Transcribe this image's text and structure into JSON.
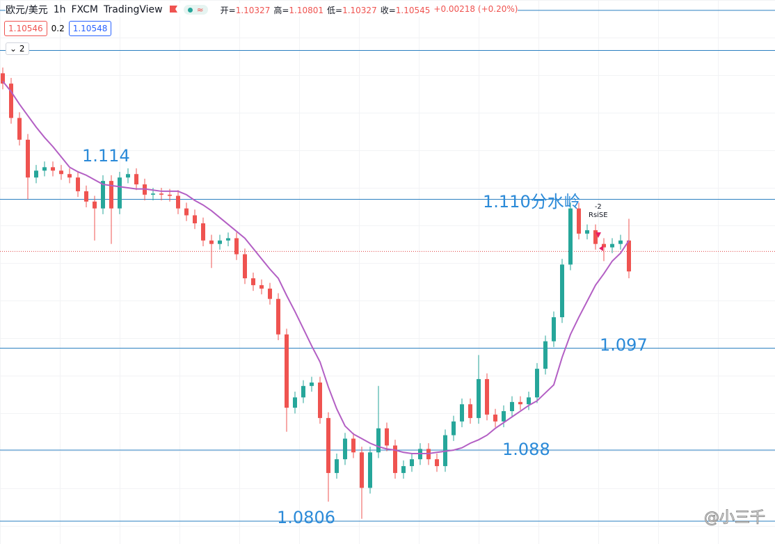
{
  "header": {
    "symbol": "欧元/美元",
    "interval": "1h",
    "broker": "FXCM",
    "platform": "TradingView",
    "badge": "≈",
    "ohlc": [
      {
        "label": "开=",
        "value": "1.10327"
      },
      {
        "label": "高=",
        "value": "1.10801"
      },
      {
        "label": "低=",
        "value": "1.10327"
      },
      {
        "label": "收=",
        "value": "1.10545"
      }
    ],
    "change": "+0.00218 (+0.20%)",
    "bid": "1.10546",
    "spread": "0.2",
    "ask": "1.10548",
    "indicators": "2"
  },
  "chart_data": {
    "type": "candlestick",
    "open": [
      1.121,
      1.1201,
      1.1171,
      1.1152,
      1.1119,
      1.1125,
      1.1128,
      1.1125,
      1.1122,
      1.1119,
      1.1107,
      1.1098,
      1.1092,
      1.1116,
      1.1092,
      1.1119,
      1.1122,
      1.1113,
      1.1104,
      1.1105,
      1.1104,
      1.1103,
      1.1092,
      1.1086,
      1.1079,
      1.1064,
      1.1061,
      1.1064,
      1.1066,
      1.1052,
      1.1031,
      1.1025,
      1.1022,
      1.1013,
      1.0982,
      1.0918,
      1.0927,
      1.0937,
      1.094,
      1.0909,
      1.0861,
      1.0873,
      1.0891,
      1.0879,
      1.0848,
      1.0879,
      1.09,
      1.0885,
      1.0861,
      1.0867,
      1.0873,
      1.0882,
      1.0873,
      1.0867,
      1.0894,
      1.0906,
      1.0921,
      1.0909,
      1.0943,
      1.0912,
      1.0906,
      1.0915,
      1.0923,
      1.0921,
      1.0927,
      1.0952,
      1.0976,
      1.0997,
      1.1043,
      1.1092,
      1.107,
      1.1073,
      1.1061,
      1.1058,
      1.1061,
      1.1064
    ],
    "high": [
      1.1215,
      1.1206,
      1.1176,
      1.1157,
      1.113,
      1.1133,
      1.1133,
      1.113,
      1.1127,
      1.1124,
      1.1112,
      1.1103,
      1.1121,
      1.1121,
      1.1124,
      1.1127,
      1.1127,
      1.1118,
      1.111,
      1.111,
      1.1109,
      1.1108,
      1.1097,
      1.1091,
      1.1084,
      1.1069,
      1.1069,
      1.1071,
      1.1071,
      1.1057,
      1.1036,
      1.103,
      1.1027,
      1.1018,
      1.0987,
      1.0932,
      1.0942,
      1.0945,
      1.0945,
      1.0914,
      1.0878,
      1.0896,
      1.0896,
      1.0884,
      1.0884,
      1.0937,
      1.0905,
      1.089,
      1.0872,
      1.0878,
      1.0887,
      1.0887,
      1.0878,
      1.0899,
      1.0911,
      1.0926,
      1.0926,
      1.0964,
      1.0948,
      1.0917,
      1.092,
      1.0928,
      1.0928,
      1.0932,
      1.0957,
      1.0981,
      1.1002,
      1.1048,
      1.1097,
      1.1097,
      1.1078,
      1.1078,
      1.1066,
      1.1066,
      1.1069,
      1.1083
    ],
    "low": [
      1.1196,
      1.1166,
      1.1147,
      1.11,
      1.1114,
      1.112,
      1.112,
      1.1117,
      1.1114,
      1.1102,
      1.1093,
      1.1064,
      1.1087,
      1.1061,
      1.1087,
      1.1114,
      1.1108,
      1.1099,
      1.1099,
      1.1099,
      1.1098,
      1.1087,
      1.1081,
      1.1074,
      1.1059,
      1.104,
      1.1056,
      1.1059,
      1.1047,
      1.1026,
      1.102,
      1.1017,
      1.1008,
      1.0977,
      1.0897,
      1.0913,
      1.0922,
      1.0932,
      1.0904,
      1.0836,
      1.0856,
      1.0868,
      1.0874,
      1.0821,
      1.0843,
      1.0874,
      1.088,
      1.0856,
      1.0856,
      1.0862,
      1.0868,
      1.0868,
      1.0862,
      1.0862,
      1.0889,
      1.0901,
      1.0904,
      1.0904,
      1.0907,
      1.0901,
      1.0901,
      1.091,
      1.0916,
      1.0916,
      1.0922,
      1.0947,
      1.0971,
      1.0992,
      1.1038,
      1.1065,
      1.1065,
      1.1056,
      1.1046,
      1.1053,
      1.1056,
      1.1031
    ],
    "close": [
      1.1201,
      1.1171,
      1.1152,
      1.1119,
      1.1125,
      1.1128,
      1.1125,
      1.1122,
      1.1119,
      1.1107,
      1.1098,
      1.1092,
      1.1116,
      1.1092,
      1.1119,
      1.1122,
      1.1113,
      1.1104,
      1.1105,
      1.1104,
      1.1103,
      1.1092,
      1.1086,
      1.1079,
      1.1064,
      1.1061,
      1.1064,
      1.1066,
      1.1052,
      1.1031,
      1.1025,
      1.1022,
      1.1013,
      1.0982,
      1.0918,
      1.0927,
      1.0937,
      1.094,
      1.0909,
      1.0861,
      1.0873,
      1.0891,
      1.0879,
      1.0848,
      1.0879,
      1.09,
      1.0885,
      1.0861,
      1.0867,
      1.0873,
      1.0882,
      1.0873,
      1.0867,
      1.0894,
      1.0906,
      1.0921,
      1.0909,
      1.0943,
      1.0912,
      1.0906,
      1.0915,
      1.0923,
      1.0921,
      1.0927,
      1.0952,
      1.0976,
      1.0997,
      1.1043,
      1.1092,
      1.107,
      1.1073,
      1.1061,
      1.1058,
      1.1061,
      1.1064,
      1.1037
    ],
    "up_color": "#26a69a",
    "down_color": "#ef5350",
    "ma": {
      "color": "#b35fc4",
      "values": [
        1.1203,
        1.1194,
        1.1183,
        1.1173,
        1.1163,
        1.1154,
        1.1146,
        1.1137,
        1.1128,
        1.1124,
        1.1121,
        1.1117,
        1.1113,
        1.1112,
        1.1111,
        1.111,
        1.1109,
        1.1109,
        1.1108,
        1.1107,
        1.1107,
        1.1107,
        1.1104,
        1.1099,
        1.1095,
        1.109,
        1.1084,
        1.1078,
        1.1072,
        1.1066,
        1.1057,
        1.1048,
        1.1039,
        1.1031,
        1.1016,
        1.1002,
        1.0987,
        1.0972,
        1.0958,
        1.0936,
        1.0917,
        1.0902,
        1.0895,
        1.0891,
        1.0887,
        1.0884,
        1.0882,
        1.0881,
        1.0879,
        1.0878,
        1.0878,
        1.0878,
        1.0879,
        1.088,
        1.0881,
        1.0883,
        1.0887,
        1.089,
        1.0894,
        1.09,
        1.0905,
        1.091,
        1.0915,
        1.092,
        1.0924,
        1.0931,
        1.0938,
        1.0962,
        1.0982,
        1.0997,
        1.1011,
        1.1025,
        1.1035,
        1.1046,
        1.1053,
        1.1064
      ]
    },
    "ylim": [
      1.0799,
      1.1274
    ],
    "levels": {
      "color": "#2a7fc0",
      "values": [
        1.1265,
        1.123,
        1.11,
        1.097,
        1.0881,
        1.0819
      ]
    },
    "last_price": 1.10545,
    "last_price_color": "#e04040",
    "annotations": [
      "1.114",
      "1.110分水岭",
      "1.097",
      "1.088",
      "1.0806"
    ],
    "signal": {
      "count": "-2",
      "label": "RsiSE"
    }
  },
  "watermark": "@小三千"
}
